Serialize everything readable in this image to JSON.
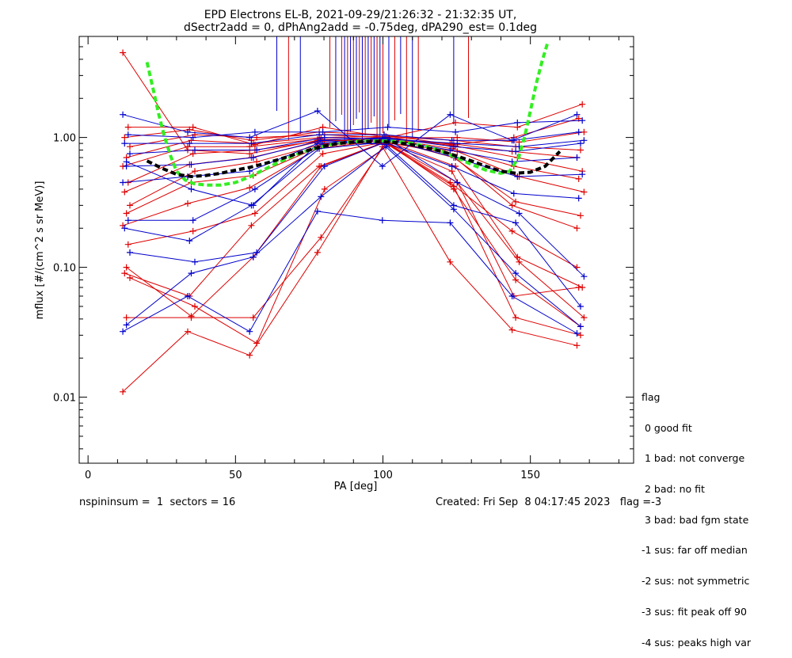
{
  "chart_data": {
    "type": "line",
    "title": "EPD Electrons EL-B, 2021-09-29/21:26:32 - 21:32:35 UT,",
    "subtitle": "dSectr2add = 0, dPhAng2add = -0.75deg, dPA290_est=   0.1deg",
    "xlabel": "PA [deg]",
    "ylabel": "mflux [#/(cm^2 s sr MeV)]",
    "xlim": [
      -3,
      185
    ],
    "ylim": [
      0.0031,
      6.0
    ],
    "yscale": "log",
    "xticks": [
      0,
      50,
      100,
      150
    ],
    "xtick_labels": [
      "0",
      "50",
      "100",
      "150"
    ],
    "yticks": [
      0.01,
      0.1,
      1.0
    ],
    "ytick_labels": [
      "0.01",
      "0.10",
      "1.00"
    ],
    "grid": false,
    "pa_bins": [
      13,
      35,
      56,
      79,
      101,
      124,
      145,
      167
    ],
    "red_series": [
      [
        0.011,
        0.032,
        0.021,
        0.13,
        0.85,
        0.11,
        0.033,
        0.025
      ],
      [
        0.041,
        0.041,
        0.041,
        0.17,
        0.9,
        0.42,
        0.041,
        0.03
      ],
      [
        0.083,
        0.05,
        0.026,
        0.4,
        0.88,
        0.45,
        0.11,
        0.041
      ],
      [
        0.09,
        0.06,
        0.21,
        0.6,
        0.92,
        0.55,
        0.06,
        0.07
      ],
      [
        0.15,
        0.19,
        0.26,
        0.75,
        0.93,
        0.6,
        0.12,
        0.07
      ],
      [
        0.21,
        0.31,
        0.41,
        0.82,
        0.95,
        0.45,
        0.19,
        0.1
      ],
      [
        0.26,
        0.45,
        0.51,
        0.86,
        0.97,
        0.7,
        0.32,
        0.25
      ],
      [
        0.3,
        0.55,
        0.65,
        0.9,
        0.9,
        0.78,
        0.5,
        0.38
      ],
      [
        0.38,
        0.62,
        0.7,
        0.93,
        0.98,
        0.82,
        0.6,
        0.48
      ],
      [
        0.45,
        0.75,
        0.8,
        0.95,
        1.0,
        0.86,
        0.7,
        0.55
      ],
      [
        0.6,
        0.85,
        0.85,
        0.97,
        0.96,
        0.9,
        0.78,
        0.7
      ],
      [
        0.7,
        0.95,
        0.9,
        1.0,
        1.02,
        0.95,
        0.85,
        0.8
      ],
      [
        0.85,
        1.05,
        1.0,
        1.05,
        0.99,
        1.0,
        0.92,
        1.1
      ],
      [
        1.0,
        1.15,
        0.95,
        1.1,
        1.05,
        0.88,
        1.0,
        1.4
      ],
      [
        1.2,
        1.2,
        0.88,
        1.2,
        1.0,
        1.3,
        1.2,
        1.8
      ],
      [
        4.5,
        0.8,
        0.75,
        0.95,
        0.93,
        0.75,
        0.3,
        0.2
      ],
      [
        0.1,
        0.042,
        0.12,
        0.6,
        0.92,
        0.4,
        0.08,
        0.035
      ]
    ],
    "blue_series": [
      [
        0.032,
        0.06,
        0.032,
        0.27,
        0.23,
        0.22,
        0.06,
        0.031
      ],
      [
        0.036,
        0.09,
        0.12,
        0.35,
        0.85,
        0.28,
        0.09,
        0.035
      ],
      [
        0.13,
        0.11,
        0.13,
        0.6,
        0.95,
        0.45,
        0.26,
        0.085
      ],
      [
        0.2,
        0.16,
        0.3,
        0.82,
        0.92,
        0.6,
        0.37,
        0.34
      ],
      [
        0.23,
        0.23,
        0.4,
        0.88,
        0.96,
        0.7,
        0.5,
        0.52
      ],
      [
        0.45,
        0.5,
        0.55,
        0.9,
        0.98,
        0.8,
        0.65,
        0.7
      ],
      [
        0.6,
        0.62,
        0.7,
        0.95,
        1.0,
        0.85,
        0.78,
        0.9
      ],
      [
        0.75,
        0.8,
        0.8,
        1.0,
        0.97,
        0.9,
        0.85,
        0.95
      ],
      [
        0.9,
        0.9,
        0.9,
        1.05,
        1.05,
        0.95,
        0.95,
        1.1
      ],
      [
        1.05,
        1.0,
        1.1,
        1.1,
        1.2,
        1.1,
        1.3,
        1.35
      ],
      [
        1.5,
        1.1,
        1.0,
        1.6,
        0.6,
        1.5,
        0.95,
        1.5
      ],
      [
        0.65,
        0.4,
        0.3,
        0.95,
        0.88,
        0.3,
        0.22,
        0.05
      ]
    ],
    "spike_pa": [
      64,
      68,
      72,
      82,
      84,
      86,
      87,
      88,
      89,
      90,
      91,
      92,
      93,
      94,
      95,
      96,
      97,
      98,
      99,
      100,
      102,
      104,
      106,
      108,
      110,
      112,
      124,
      129
    ],
    "fit_black": {
      "x": [
        20,
        25,
        30,
        35,
        40,
        45,
        50,
        55,
        60,
        65,
        70,
        75,
        80,
        85,
        90,
        95,
        100,
        105,
        110,
        115,
        120,
        125,
        130,
        135,
        140,
        145,
        150,
        155,
        160
      ],
      "y": [
        0.66,
        0.58,
        0.52,
        0.5,
        0.51,
        0.53,
        0.56,
        0.59,
        0.63,
        0.68,
        0.74,
        0.8,
        0.86,
        0.9,
        0.92,
        0.93,
        0.93,
        0.91,
        0.88,
        0.83,
        0.78,
        0.72,
        0.66,
        0.6,
        0.55,
        0.53,
        0.54,
        0.6,
        0.78
      ]
    },
    "fit_green": {
      "x": [
        20,
        22,
        24,
        26,
        28,
        30,
        33,
        36,
        40,
        45,
        50,
        55,
        60,
        65,
        70,
        75,
        80,
        85,
        90,
        95,
        100,
        105,
        110,
        115,
        120,
        125,
        130,
        135,
        140,
        143,
        146,
        148,
        150,
        152,
        154,
        156
      ],
      "y": [
        3.8,
        2.4,
        1.5,
        1.0,
        0.72,
        0.55,
        0.47,
        0.44,
        0.43,
        0.43,
        0.45,
        0.5,
        0.57,
        0.65,
        0.73,
        0.8,
        0.86,
        0.9,
        0.93,
        0.94,
        0.94,
        0.93,
        0.9,
        0.85,
        0.78,
        0.7,
        0.62,
        0.56,
        0.53,
        0.55,
        0.7,
        1.0,
        1.6,
        2.6,
        3.9,
        5.5
      ]
    }
  },
  "legend": {
    "title": "flag",
    "items": [
      " 0 good fit",
      " 1 bad: not converge",
      " 2 bad: no fit",
      " 3 bad: bad fgm state",
      "-1 sus: far off median",
      "-2 sus: not symmetric",
      "-3 sus: fit peak off 90",
      "-4 sus: peaks high var"
    ]
  },
  "footer": {
    "left": "nspininsum =  1  sectors = 16",
    "right": "Created: Fri Sep  8 04:17:45 2023   flag =-3"
  },
  "colors": {
    "red": "#dd0000",
    "blue": "#0000cc",
    "green": "#33ee22",
    "black": "#000000"
  }
}
